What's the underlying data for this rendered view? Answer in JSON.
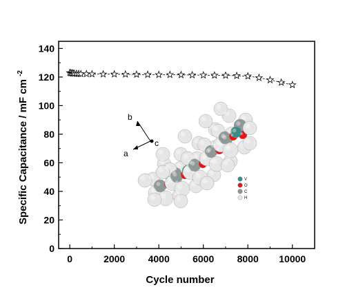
{
  "chart_data": {
    "type": "scatter",
    "title": "",
    "xlabel": "Cycle number",
    "ylabel": "Specific Capacitance / mF cm",
    "ylabel_superscript": "-2",
    "xlim": [
      -500,
      11000
    ],
    "ylim": [
      0,
      145
    ],
    "xticks": [
      "0",
      "2000",
      "4000",
      "6000",
      "8000",
      "10000"
    ],
    "yticks": [
      "0",
      "20",
      "40",
      "60",
      "80",
      "100",
      "120",
      "140"
    ],
    "marker": "open-star",
    "line": "dashed",
    "series": [
      {
        "x": [
          0,
          50,
          100,
          150,
          200,
          300,
          400,
          500,
          750,
          1000,
          1500,
          2000,
          2500,
          3000,
          3500,
          4000,
          4500,
          5000,
          5500,
          6000,
          6500,
          7000,
          7500,
          8000,
          8500,
          9000,
          9500,
          10000
        ],
        "y": [
          123,
          122.8,
          122.7,
          122.6,
          122.5,
          122.4,
          122.3,
          122.2,
          122.2,
          122.1,
          122.0,
          122.0,
          121.9,
          121.8,
          121.7,
          121.6,
          121.6,
          121.5,
          121.4,
          121.3,
          121.2,
          121.1,
          120.9,
          120.6,
          119.5,
          118.0,
          116.2,
          114.5
        ]
      }
    ],
    "inset": {
      "axes": [
        "b",
        "c",
        "a"
      ],
      "legend": [
        "V",
        "O",
        "C",
        "H"
      ]
    }
  },
  "colors": {
    "V": "#3f8a88",
    "O": "#e01818",
    "C": "#8f9a98",
    "H": "#e6e6e6"
  }
}
